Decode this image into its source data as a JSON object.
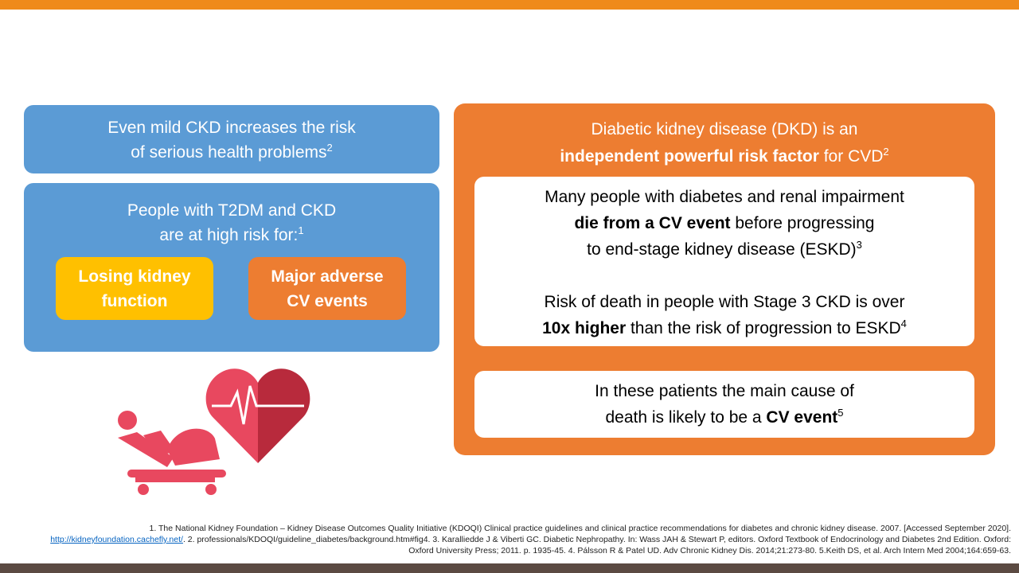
{
  "left_panel": {
    "summary_box": {
      "lines": [
        "Even mild CKD increases the risk",
        "of serious health problems"
      ],
      "ref": "2"
    },
    "risk_box": {
      "lines": [
        "People with T2DM and CKD",
        "are at high risk for:"
      ],
      "ref": "1",
      "pills": [
        {
          "lines": [
            "Losing kidney",
            "function"
          ]
        },
        {
          "lines": [
            "Major adverse",
            "CV events"
          ]
        }
      ]
    }
  },
  "right_panel": {
    "heading": {
      "line1": "Diabetic kidney disease (DKD) is an",
      "bold": "independent powerful risk factor",
      "rest": " for CVD",
      "ref": "2"
    },
    "card1": {
      "para1": {
        "line1": "Many people with diabetes and renal impairment",
        "bold": "die from a CV event",
        "rest": " before progressing",
        "line3": "to end-stage kidney disease (ESKD)",
        "ref": "3"
      },
      "para2": {
        "line1": "Risk of death in people with Stage 3 CKD is over",
        "bold": "10x higher",
        "rest": " than the risk of progression to ESKD",
        "ref": "4"
      }
    },
    "card2": {
      "line1": "In these patients the main cause of",
      "lead": "death is likely to be a ",
      "bold": "CV event",
      "ref": "5"
    }
  },
  "footnotes": {
    "before_link": "1. The National Kidney Foundation – Kidney Disease Outcomes Quality Initiative (KDOQI) Clinical practice guidelines and clinical practice recommendations for diabetes and chronic kidney disease. 2007. [Accessed September 2020]. ",
    "link": "http://kidneyfoundation.cachefly.net/",
    "after_link": ". 2. professionals/KDOQI/guideline_diabetes/background.htm#fig4. 3. Karalliedde J & Viberti GC. Diabetic Nephropathy. In: Wass JAH & Stewart P, editors. Oxford Textbook of Endocrinology and Diabetes 2nd Edition. Oxford: Oxford University Press; 2011. p. 1935-45. 4. Pálsson R & Patel UD. Adv Chronic Kidney Dis. 2014;21:273-80. 5.Keith DS, et al. Arch Intern Med 2004;164:659-63."
  }
}
